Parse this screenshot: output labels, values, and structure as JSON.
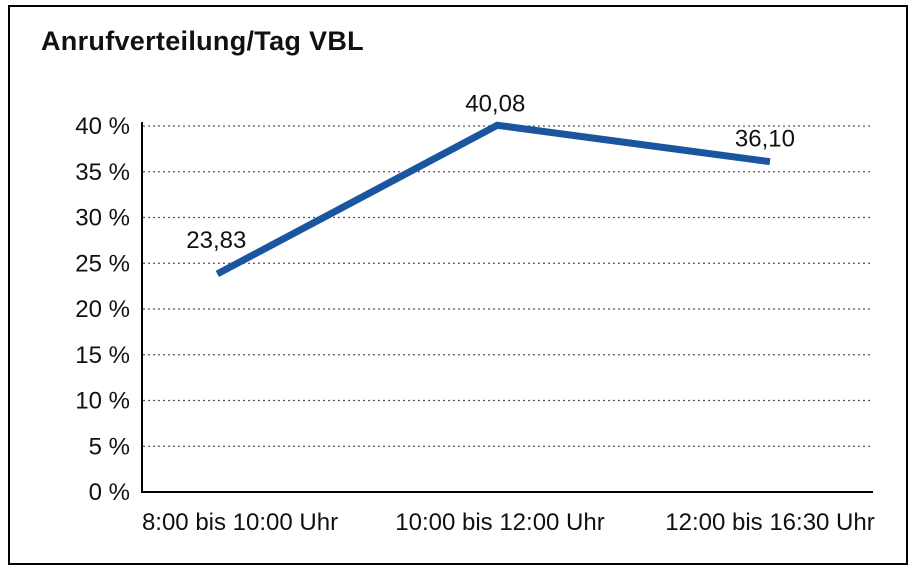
{
  "chart_data": {
    "type": "line",
    "title": "Anrufverteilung/Tag VBL",
    "categories": [
      "8:00 bis 10:00 Uhr",
      "10:00 bis 12:00 Uhr",
      "12:00 bis 16:30 Uhr"
    ],
    "values": [
      23.83,
      40.08,
      36.1
    ],
    "data_labels": [
      "23,83",
      "40,08",
      "36,10"
    ],
    "xlabel": "",
    "ylabel": "",
    "ylim": [
      0,
      40
    ],
    "ytick_step": 5,
    "ytick_labels": [
      "0 %",
      "5 %",
      "10 %",
      "15 %",
      "20 %",
      "25 %",
      "30 %",
      "35 %",
      "40 %"
    ],
    "grid": "horizontal-dotted",
    "legend": "none",
    "markers": "none"
  },
  "colors": {
    "background": "#ffffff",
    "frame_border": "#000000",
    "axis": "#000000",
    "gridline": "#555555",
    "text": "#111111",
    "line": "#1a55a0"
  }
}
